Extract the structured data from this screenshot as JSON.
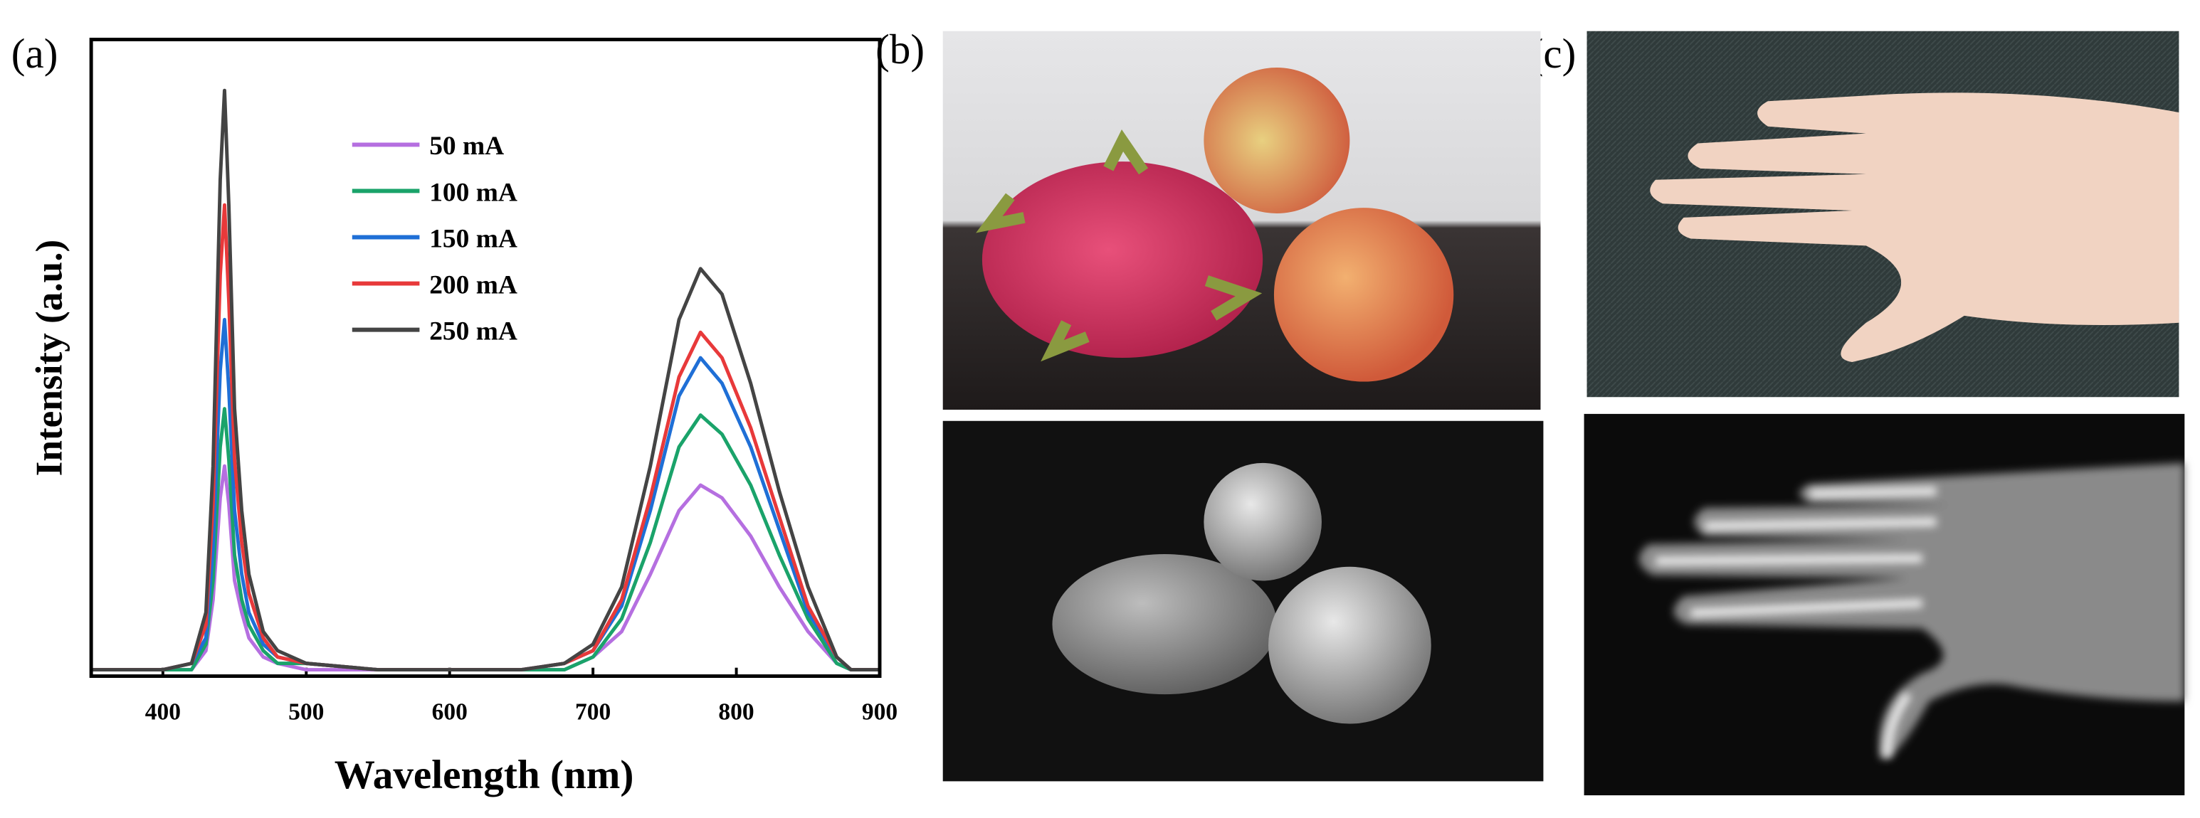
{
  "panel_labels": {
    "a": "(a)",
    "b": "(b)",
    "c": "(c)"
  },
  "chart_data": {
    "type": "line",
    "x_label": "Wavelength (nm)",
    "y_label": "Intensity (a.u.)",
    "x": [
      350,
      400,
      420,
      430,
      435,
      440,
      443,
      446,
      450,
      455,
      460,
      470,
      480,
      500,
      550,
      600,
      650,
      680,
      700,
      720,
      740,
      760,
      775,
      790,
      810,
      830,
      850,
      870,
      880,
      900
    ],
    "series": [
      {
        "name": "50 mA",
        "color": "#b56fe0",
        "values": [
          0.01,
          0.01,
          0.01,
          0.04,
          0.12,
          0.28,
          0.33,
          0.27,
          0.15,
          0.1,
          0.06,
          0.03,
          0.02,
          0.01,
          0.01,
          0.01,
          0.01,
          0.01,
          0.03,
          0.07,
          0.16,
          0.26,
          0.3,
          0.28,
          0.22,
          0.14,
          0.07,
          0.02,
          0.01,
          0.01
        ]
      },
      {
        "name": "100 mA",
        "color": "#1aa36a",
        "values": [
          0.01,
          0.01,
          0.01,
          0.05,
          0.15,
          0.36,
          0.42,
          0.34,
          0.19,
          0.12,
          0.08,
          0.04,
          0.02,
          0.02,
          0.01,
          0.01,
          0.01,
          0.01,
          0.03,
          0.09,
          0.21,
          0.36,
          0.41,
          0.38,
          0.3,
          0.19,
          0.09,
          0.02,
          0.01,
          0.01
        ]
      },
      {
        "name": "150 mA",
        "color": "#1f6fd6",
        "values": [
          0.01,
          0.01,
          0.02,
          0.06,
          0.2,
          0.48,
          0.56,
          0.45,
          0.26,
          0.16,
          0.1,
          0.05,
          0.03,
          0.02,
          0.01,
          0.01,
          0.01,
          0.02,
          0.04,
          0.11,
          0.26,
          0.44,
          0.5,
          0.46,
          0.36,
          0.23,
          0.1,
          0.03,
          0.01,
          0.01
        ]
      },
      {
        "name": "200 mA",
        "color": "#e8393a",
        "values": [
          0.01,
          0.01,
          0.02,
          0.08,
          0.27,
          0.63,
          0.74,
          0.59,
          0.34,
          0.21,
          0.13,
          0.06,
          0.03,
          0.02,
          0.01,
          0.01,
          0.01,
          0.02,
          0.04,
          0.12,
          0.28,
          0.47,
          0.54,
          0.5,
          0.39,
          0.25,
          0.11,
          0.03,
          0.01,
          0.01
        ]
      },
      {
        "name": "250 mA",
        "color": "#444444",
        "values": [
          0.01,
          0.01,
          0.02,
          0.1,
          0.33,
          0.78,
          0.92,
          0.74,
          0.42,
          0.26,
          0.16,
          0.07,
          0.04,
          0.02,
          0.01,
          0.01,
          0.01,
          0.02,
          0.05,
          0.14,
          0.33,
          0.56,
          0.64,
          0.6,
          0.46,
          0.29,
          0.14,
          0.03,
          0.01,
          0.01
        ]
      }
    ],
    "xlim": [
      350,
      900
    ],
    "xticks": [
      400,
      500,
      600,
      700,
      800,
      900
    ],
    "ylim": [
      0,
      1
    ],
    "grid": false,
    "legend": "upper center"
  }
}
